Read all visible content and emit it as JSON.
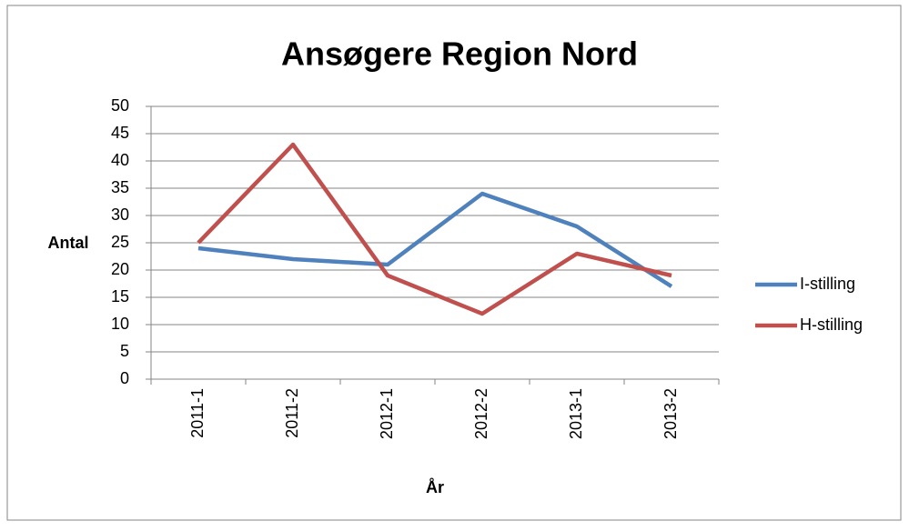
{
  "chart_data": {
    "type": "line",
    "title": "Ansøgere Region Nord",
    "x_label": "År",
    "y_label": "Antal",
    "categories": [
      "2011-1",
      "2011-2",
      "2012-1",
      "2012-2",
      "2013-1",
      "2013-2"
    ],
    "series": [
      {
        "name": "I-stilling",
        "color": "#4f81bd",
        "values": [
          24,
          22,
          21,
          34,
          28,
          17
        ]
      },
      {
        "name": "H-stilling",
        "color": "#c0504d",
        "values": [
          25,
          43,
          19,
          12,
          23,
          19
        ]
      }
    ],
    "ylim": [
      0,
      50
    ],
    "yticks": [
      0,
      5,
      10,
      15,
      20,
      25,
      30,
      35,
      40,
      45,
      50
    ],
    "grid": true,
    "legend": "right"
  }
}
